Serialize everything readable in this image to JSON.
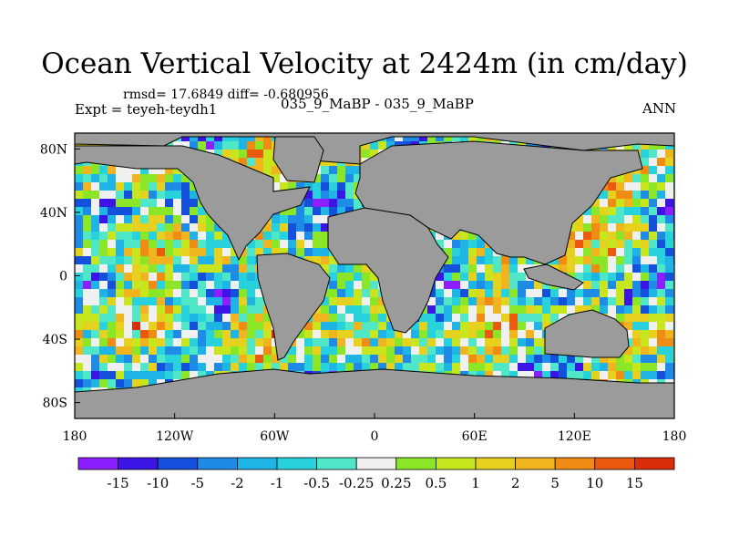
{
  "chart_data": {
    "type": "heatmap",
    "title": "Ocean Vertical Velocity at 2424m (in cm/day)",
    "subtitle_left": "Expt = teyeh-teydh1",
    "subtitle_stats": "rmsd= 17.6849 diff= -0.680956",
    "subtitle_center": "035_9_MaBP - 035_9_MaBP",
    "subtitle_right": "ANN",
    "x_ticks": [
      "180",
      "120W",
      "60W",
      "0",
      "60E",
      "120E",
      "180"
    ],
    "y_ticks": [
      "80N",
      "40N",
      "0",
      "40S",
      "80S"
    ],
    "xlim": [
      -180,
      180
    ],
    "ylim": [
      -90,
      90
    ],
    "colorbar": {
      "labels": [
        "-15",
        "-10",
        "-5",
        "-2",
        "-1",
        "-0.5",
        "-0.25",
        "0.25",
        "0.5",
        "1",
        "2",
        "5",
        "10",
        "15"
      ],
      "colors": [
        "#8c1eff",
        "#3c14e6",
        "#1450dc",
        "#1e8ce6",
        "#1eb4e6",
        "#28d2dc",
        "#50e6c8",
        "#f0f0f0",
        "#8ce628",
        "#c8e61e",
        "#e6d21e",
        "#f0b41e",
        "#f08c14",
        "#eb5a0f",
        "#dc2d0a"
      ]
    },
    "land_color": "#9b9b9b"
  }
}
